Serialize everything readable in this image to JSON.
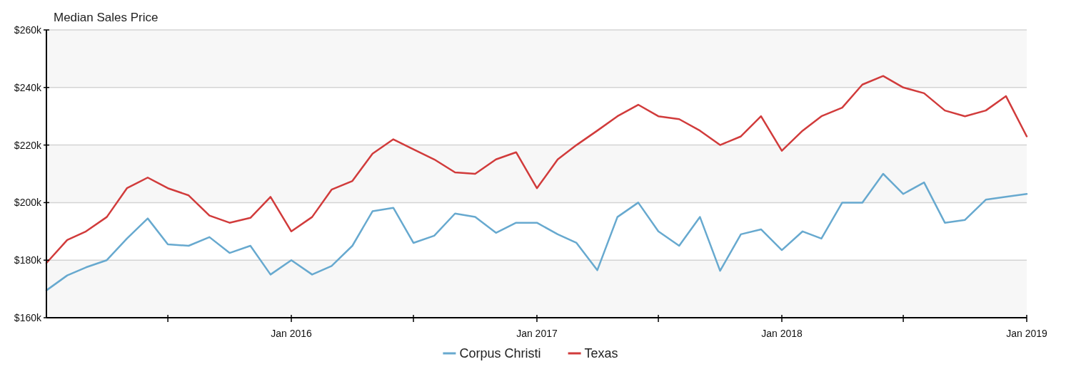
{
  "chart_data": {
    "type": "line",
    "title": "Median Sales Price",
    "x": [
      "2015-01",
      "2015-02",
      "2015-03",
      "2015-04",
      "2015-05",
      "2015-06",
      "2015-07",
      "2015-08",
      "2015-09",
      "2015-10",
      "2015-11",
      "2015-12",
      "2016-01",
      "2016-02",
      "2016-03",
      "2016-04",
      "2016-05",
      "2016-06",
      "2016-07",
      "2016-08",
      "2016-09",
      "2016-10",
      "2016-11",
      "2016-12",
      "2017-01",
      "2017-02",
      "2017-03",
      "2017-04",
      "2017-05",
      "2017-06",
      "2017-07",
      "2017-08",
      "2017-09",
      "2017-10",
      "2017-11",
      "2017-12",
      "2018-01",
      "2018-02",
      "2018-03",
      "2018-04",
      "2018-05",
      "2018-06",
      "2018-07",
      "2018-08",
      "2018-09",
      "2018-10",
      "2018-11",
      "2018-12",
      "2019-01"
    ],
    "series": [
      {
        "name": "Corpus Christi",
        "color": "#67a9cf",
        "values": [
          169.5,
          174.7,
          177.5,
          180,
          187.5,
          194.5,
          185.5,
          185,
          188,
          182.5,
          185,
          175,
          180,
          175,
          178,
          185,
          197,
          198.2,
          186,
          188.5,
          196.2,
          195,
          189.5,
          193,
          193,
          189,
          186,
          176.5,
          195,
          200,
          190,
          185,
          195,
          176.3,
          189,
          190.7,
          183.5,
          190,
          187.5,
          200,
          200,
          210,
          203,
          207,
          193,
          194,
          201,
          202,
          203
        ]
      },
      {
        "name": "Texas",
        "color": "#d13b3b",
        "values": [
          179,
          187,
          190,
          195,
          205,
          208.7,
          205,
          202.5,
          195.5,
          193,
          194.7,
          202,
          190,
          195,
          204.5,
          207.5,
          217,
          222,
          218.5,
          215,
          210.5,
          210,
          215,
          217.5,
          205,
          215,
          220,
          225,
          230,
          234,
          230,
          229,
          225,
          220,
          223,
          230,
          218,
          225,
          230,
          233,
          241,
          244,
          240,
          238,
          232,
          230,
          232,
          237,
          223
        ]
      }
    ],
    "xlim": [
      "2015-01",
      "2019-01"
    ],
    "xticks": [
      {
        "value": "2015-07",
        "label": null
      },
      {
        "value": "2016-01",
        "label": "Jan 2016"
      },
      {
        "value": "2016-07",
        "label": null
      },
      {
        "value": "2017-01",
        "label": "Jan 2017"
      },
      {
        "value": "2017-07",
        "label": null
      },
      {
        "value": "2018-01",
        "label": "Jan 2018"
      },
      {
        "value": "2018-07",
        "label": null
      },
      {
        "value": "2019-01",
        "label": "Jan 2019"
      }
    ],
    "ylim": [
      160,
      260
    ],
    "yticks": [
      {
        "value": 160,
        "label": "$160k"
      },
      {
        "value": 180,
        "label": "$180k"
      },
      {
        "value": 200,
        "label": "$200k"
      },
      {
        "value": 220,
        "label": "$220k"
      },
      {
        "value": 240,
        "label": "$240k"
      },
      {
        "value": 260,
        "label": "$260k"
      }
    ],
    "grid": "y",
    "legend": "bottom",
    "marker": "none",
    "line_style": "solid"
  }
}
